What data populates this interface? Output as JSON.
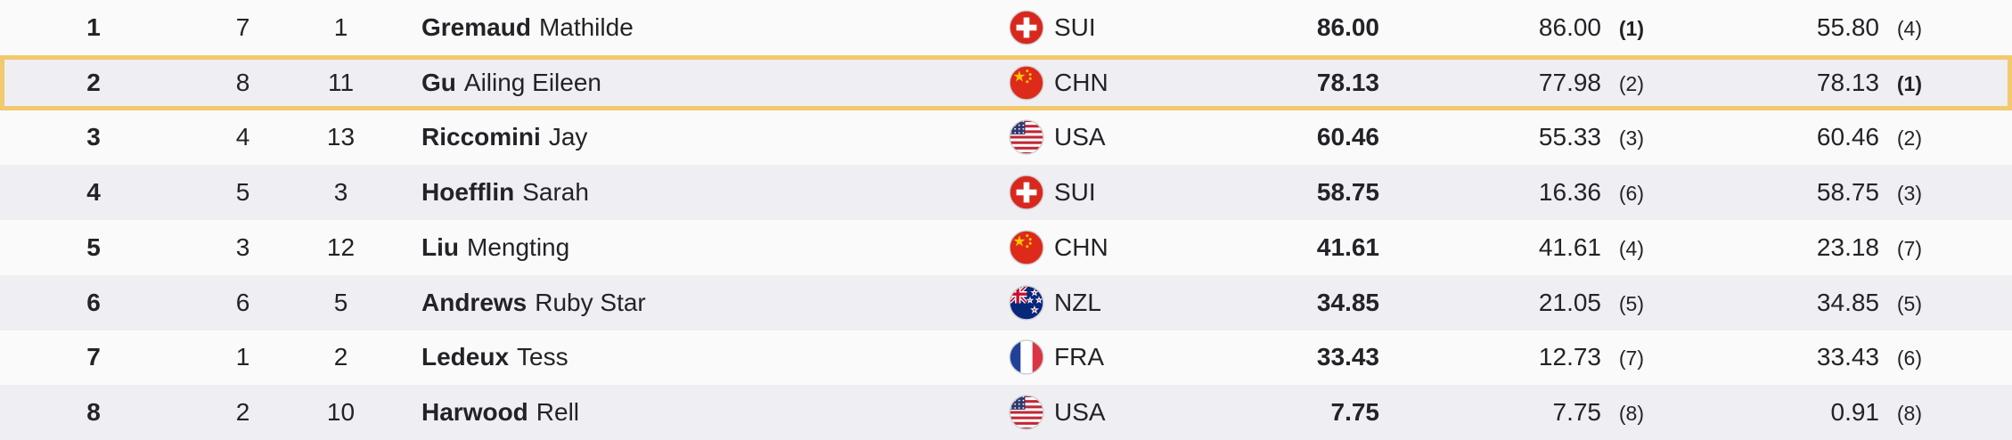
{
  "colors": {
    "row_bg": "#fafafa",
    "row_alt_bg": "#efeef3",
    "highlight_border": "#f2c96d",
    "text_color": "#232327"
  },
  "table": {
    "rows": [
      {
        "rank": "1",
        "order": "7",
        "bib": "1",
        "last": "Gremaud",
        "first": "Mathilde",
        "noc": "SUI",
        "best": "86.00",
        "run1": "86.00",
        "run1_rank": "(1)",
        "run1_rank_best": true,
        "run2": "55.80",
        "run2_rank": "(4)",
        "run2_rank_best": false,
        "highlight": false
      },
      {
        "rank": "2",
        "order": "8",
        "bib": "11",
        "last": "Gu",
        "first": "Ailing Eileen",
        "noc": "CHN",
        "best": "78.13",
        "run1": "77.98",
        "run1_rank": "(2)",
        "run1_rank_best": false,
        "run2": "78.13",
        "run2_rank": "(1)",
        "run2_rank_best": true,
        "highlight": true
      },
      {
        "rank": "3",
        "order": "4",
        "bib": "13",
        "last": "Riccomini",
        "first": "Jay",
        "noc": "USA",
        "best": "60.46",
        "run1": "55.33",
        "run1_rank": "(3)",
        "run1_rank_best": false,
        "run2": "60.46",
        "run2_rank": "(2)",
        "run2_rank_best": false,
        "highlight": false
      },
      {
        "rank": "4",
        "order": "5",
        "bib": "3",
        "last": "Hoefflin",
        "first": "Sarah",
        "noc": "SUI",
        "best": "58.75",
        "run1": "16.36",
        "run1_rank": "(6)",
        "run1_rank_best": false,
        "run2": "58.75",
        "run2_rank": "(3)",
        "run2_rank_best": false,
        "highlight": false
      },
      {
        "rank": "5",
        "order": "3",
        "bib": "12",
        "last": "Liu",
        "first": "Mengting",
        "noc": "CHN",
        "best": "41.61",
        "run1": "41.61",
        "run1_rank": "(4)",
        "run1_rank_best": false,
        "run2": "23.18",
        "run2_rank": "(7)",
        "run2_rank_best": false,
        "highlight": false
      },
      {
        "rank": "6",
        "order": "6",
        "bib": "5",
        "last": "Andrews",
        "first": "Ruby Star",
        "noc": "NZL",
        "best": "34.85",
        "run1": "21.05",
        "run1_rank": "(5)",
        "run1_rank_best": false,
        "run2": "34.85",
        "run2_rank": "(5)",
        "run2_rank_best": false,
        "highlight": false
      },
      {
        "rank": "7",
        "order": "1",
        "bib": "2",
        "last": "Ledeux",
        "first": "Tess",
        "noc": "FRA",
        "best": "33.43",
        "run1": "12.73",
        "run1_rank": "(7)",
        "run1_rank_best": false,
        "run2": "33.43",
        "run2_rank": "(6)",
        "run2_rank_best": false,
        "highlight": false
      },
      {
        "rank": "8",
        "order": "2",
        "bib": "10",
        "last": "Harwood",
        "first": "Rell",
        "noc": "USA",
        "best": "7.75",
        "run1": "7.75",
        "run1_rank": "(8)",
        "run1_rank_best": false,
        "run2": "0.91",
        "run2_rank": "(8)",
        "run2_rank_best": false,
        "highlight": false
      }
    ]
  }
}
